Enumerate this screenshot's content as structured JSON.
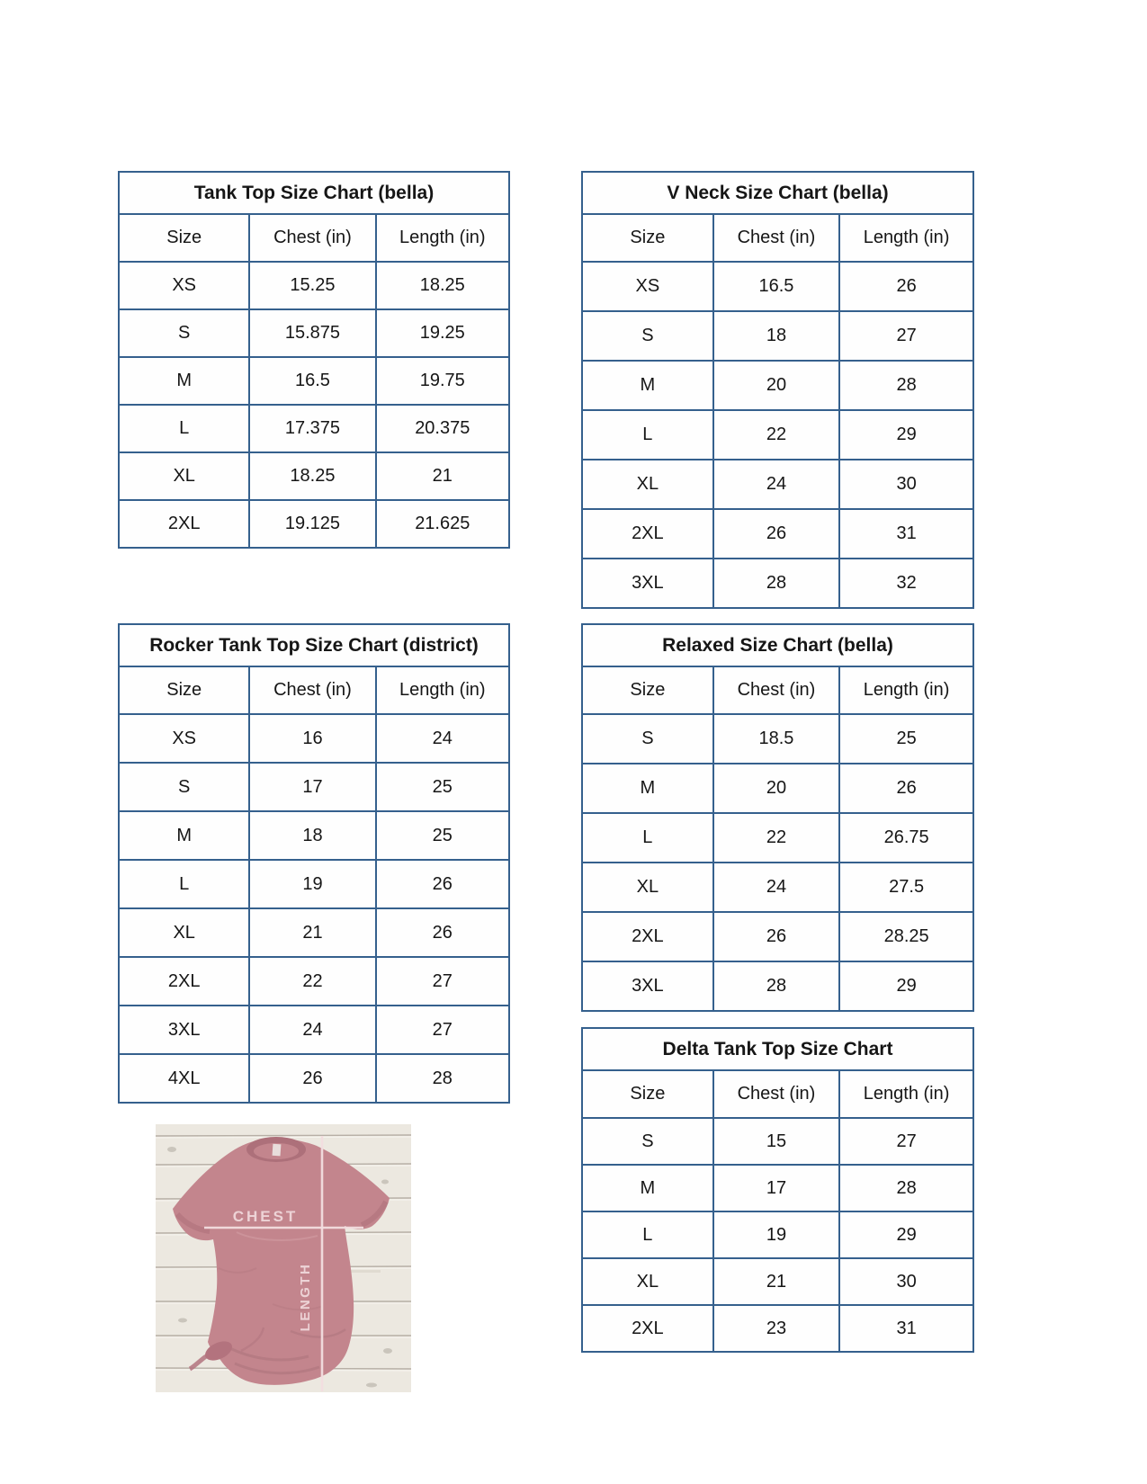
{
  "page": {
    "background": "#ffffff",
    "description": "Apparel size chart reference sheet with five measurement tables and a t-shirt measurement guide photo"
  },
  "colors": {
    "table_border": "#35608d",
    "cell_background": "#fefefe",
    "text": "#161616",
    "shirt_mauve": "#c3858d",
    "shirt_dark": "#ad707a",
    "wood_background": "#eeebe4",
    "measure_line": "#f3dee0"
  },
  "tables": [
    {
      "id": "tank-top-bella",
      "title": "Tank Top Size Chart  (bella)",
      "headers": [
        "Size",
        "Chest (in)",
        "Length (in)"
      ],
      "rows": [
        [
          "XS",
          "15.25",
          "18.25"
        ],
        [
          "S",
          "15.875",
          "19.25"
        ],
        [
          "M",
          "16.5",
          "19.75"
        ],
        [
          "L",
          "17.375",
          "20.375"
        ],
        [
          "XL",
          "18.25",
          "21"
        ],
        [
          "2XL",
          "19.125",
          "21.625"
        ]
      ]
    },
    {
      "id": "v-neck-bella",
      "title": "V Neck Size Chart  (bella)",
      "headers": [
        "Size",
        "Chest (in)",
        "Length (in)"
      ],
      "rows": [
        [
          "XS",
          "16.5",
          "26"
        ],
        [
          "S",
          "18",
          "27"
        ],
        [
          "M",
          "20",
          "28"
        ],
        [
          "L",
          "22",
          "29"
        ],
        [
          "XL",
          "24",
          "30"
        ],
        [
          "2XL",
          "26",
          "31"
        ],
        [
          "3XL",
          "28",
          "32"
        ]
      ]
    },
    {
      "id": "rocker-tank-top-district",
      "title": "Rocker Tank Top Size Chart (district)",
      "headers": [
        "Size",
        "Chest (in)",
        "Length (in)"
      ],
      "rows": [
        [
          "XS",
          "16",
          "24"
        ],
        [
          "S",
          "17",
          "25"
        ],
        [
          "M",
          "18",
          "25"
        ],
        [
          "L",
          "19",
          "26"
        ],
        [
          "XL",
          "21",
          "26"
        ],
        [
          "2XL",
          "22",
          "27"
        ],
        [
          "3XL",
          "24",
          "27"
        ],
        [
          "4XL",
          "26",
          "28"
        ]
      ]
    },
    {
      "id": "relaxed-bella",
      "title": "Relaxed Size Chart (bella)",
      "headers": [
        "Size",
        "Chest (in)",
        "Length (in)"
      ],
      "rows": [
        [
          "S",
          "18.5",
          "25"
        ],
        [
          "M",
          "20",
          "26"
        ],
        [
          "L",
          "22",
          "26.75"
        ],
        [
          "XL",
          "24",
          "27.5"
        ],
        [
          "2XL",
          "26",
          "28.25"
        ],
        [
          "3XL",
          "28",
          "29"
        ]
      ]
    },
    {
      "id": "delta-tank-top",
      "title": "Delta Tank Top Size Chart",
      "headers": [
        "Size",
        "Chest (in)",
        "Length (in)"
      ],
      "rows": [
        [
          "S",
          "15",
          "27"
        ],
        [
          "M",
          "17",
          "28"
        ],
        [
          "L",
          "19",
          "29"
        ],
        [
          "XL",
          "21",
          "30"
        ],
        [
          "2XL",
          "23",
          "31"
        ]
      ]
    }
  ],
  "photo": {
    "chest_label": "CHEST",
    "length_label": "LENGTH"
  }
}
